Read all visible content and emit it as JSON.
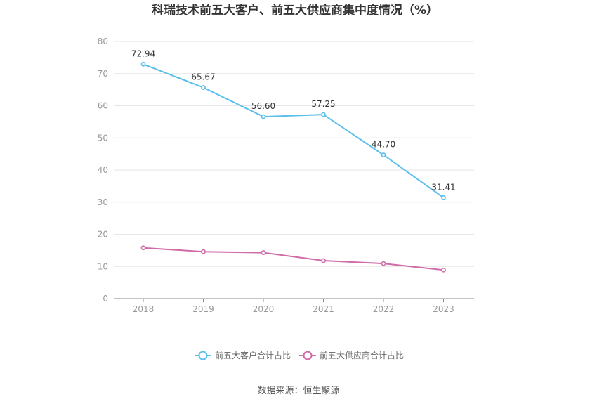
{
  "chart_data": {
    "type": "line",
    "title": "科瑞技术前五大客户、前五大供应商集中度情况（%）",
    "categories": [
      "2018",
      "2019",
      "2020",
      "2021",
      "2022",
      "2023"
    ],
    "series": [
      {
        "name": "前五大客户合计占比",
        "color": "#5bbfec",
        "values": [
          72.94,
          65.67,
          56.6,
          57.25,
          44.7,
          31.41
        ],
        "show_labels": true
      },
      {
        "name": "前五大供应商合计占比",
        "color": "#d06aa8",
        "values": [
          15.8,
          14.6,
          14.3,
          11.8,
          10.9,
          8.9
        ],
        "show_labels": false
      }
    ],
    "ylim": [
      0,
      80
    ],
    "yticks": [
      0,
      10,
      20,
      30,
      40,
      50,
      60,
      70,
      80
    ],
    "grid": true,
    "legend": "bottom-center"
  },
  "source": "数据来源：恒生聚源"
}
